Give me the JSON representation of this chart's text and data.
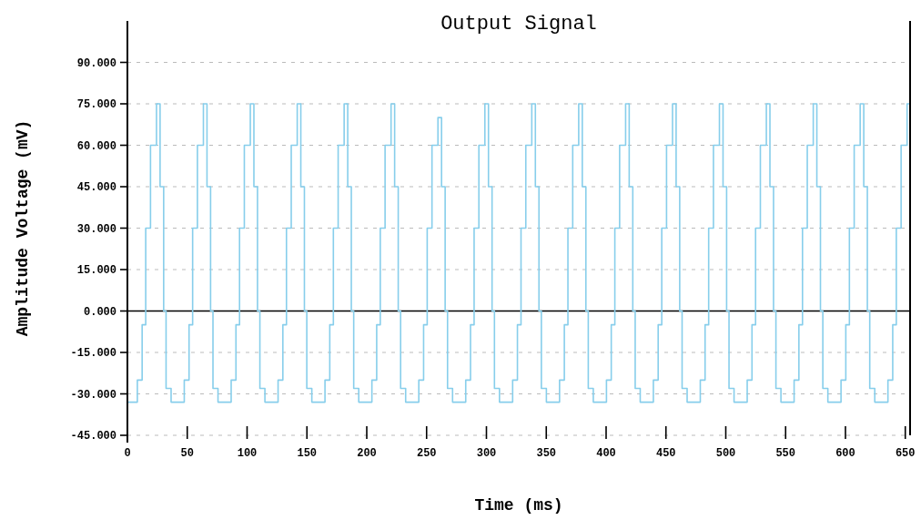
{
  "chart_data": {
    "type": "step",
    "title": "Output Signal",
    "xlabel": "Time (ms)",
    "ylabel": "Amplitude Voltage (mV)",
    "xlim": [
      0,
      654
    ],
    "ylim": [
      -45,
      105
    ],
    "xticks": [
      0,
      50,
      100,
      150,
      200,
      250,
      300,
      350,
      400,
      450,
      500,
      550,
      600,
      650
    ],
    "yticks": [
      {
        "value": -45,
        "label": "-45.000"
      },
      {
        "value": -30,
        "label": "-30.000"
      },
      {
        "value": -15,
        "label": "-15.000"
      },
      {
        "value": 0,
        "label": "0.000"
      },
      {
        "value": 15,
        "label": "15.000"
      },
      {
        "value": 30,
        "label": "30.000"
      },
      {
        "value": 45,
        "label": "45.000"
      },
      {
        "value": 60,
        "label": "60.000"
      },
      {
        "value": 75,
        "label": "75.000"
      },
      {
        "value": 90,
        "label": "90.000"
      }
    ],
    "grid": "y",
    "marker": "none",
    "line_style": "solid",
    "ref_lines": [
      {
        "axis": "y",
        "value": 0,
        "color": "#000000"
      }
    ],
    "series": [
      {
        "color": "#87ceeb",
        "x": [
          0,
          8.3,
          12.3,
          15.3,
          19.3,
          24.3,
          27.3,
          30.3,
          32.3,
          36.5,
          47.5,
          51.5,
          54.5,
          58.5,
          63.5,
          66.5,
          69.5,
          71.5,
          75.7,
          86.7,
          90.7,
          93.7,
          97.7,
          102.7,
          105.7,
          108.7,
          110.7,
          114.9,
          125.9,
          129.9,
          132.9,
          136.9,
          141.9,
          144.9,
          147.9,
          149.9,
          154.1,
          165.1,
          169.1,
          172.1,
          176.1,
          181.1,
          184.1,
          187.1,
          189.1,
          193.3,
          204.3,
          208.3,
          211.3,
          215.3,
          220.3,
          223.3,
          226.3,
          228.3,
          232.5,
          243.5,
          247.5,
          250.5,
          254.5,
          259.5,
          262.5,
          265.5,
          267.5,
          271.7,
          282.7,
          286.7,
          289.7,
          293.7,
          298.7,
          301.7,
          304.7,
          306.7,
          310.9,
          321.9,
          325.9,
          328.9,
          332.9,
          337.9,
          340.9,
          343.9,
          345.9,
          350.1,
          361.1,
          365.1,
          368.1,
          372.1,
          377.1,
          380.1,
          383.1,
          385.1,
          389.3,
          400.3,
          404.3,
          407.3,
          411.3,
          416.3,
          419.3,
          422.3,
          424.3,
          428.5,
          439.5,
          443.5,
          446.5,
          450.5,
          455.5,
          458.5,
          461.5,
          463.5,
          467.7,
          478.7,
          482.7,
          485.7,
          489.7,
          494.7,
          497.7,
          500.7,
          502.7,
          506.9,
          517.9,
          521.9,
          524.9,
          528.9,
          533.9,
          536.9,
          539.9,
          541.9,
          546.1,
          557.1,
          561.1,
          564.1,
          568.1,
          573.1,
          576.1,
          579.1,
          581.1,
          585.3,
          596.3,
          600.3,
          603.3,
          607.3,
          612.3,
          615.3,
          618.3,
          620.3,
          624.5,
          635.5,
          639.5,
          642.5,
          646.5,
          651.5,
          654
        ],
        "values": [
          -33,
          -25,
          -5,
          30,
          60,
          75,
          45,
          0,
          -28,
          -33,
          -25,
          -5,
          30,
          60,
          75,
          45,
          0,
          -28,
          -33,
          -25,
          -5,
          30,
          60,
          75,
          45,
          0,
          -28,
          -33,
          -25,
          -5,
          30,
          60,
          75,
          45,
          0,
          -28,
          -33,
          -25,
          -5,
          30,
          60,
          75,
          45,
          0,
          -28,
          -33,
          -25,
          -5,
          30,
          60,
          75,
          45,
          0,
          -28,
          -33,
          -25,
          -5,
          30,
          60,
          70,
          45,
          0,
          -28,
          -33,
          -25,
          -5,
          30,
          60,
          75,
          45,
          0,
          -28,
          -33,
          -25,
          -5,
          30,
          60,
          75,
          45,
          0,
          -28,
          -33,
          -25,
          -5,
          30,
          60,
          75,
          45,
          0,
          -28,
          -33,
          -25,
          -5,
          30,
          60,
          75,
          45,
          0,
          -28,
          -33,
          -25,
          -5,
          30,
          60,
          75,
          45,
          0,
          -28,
          -33,
          -25,
          -5,
          30,
          60,
          75,
          45,
          0,
          -28,
          -33,
          -25,
          -5,
          30,
          60,
          75,
          45,
          0,
          -28,
          -33,
          -25,
          -5,
          30,
          60,
          75,
          45,
          0,
          -28,
          -33,
          -25,
          -5,
          30,
          60,
          75,
          45,
          0,
          -28,
          -33,
          -25,
          -5,
          30,
          60,
          75,
          65
        ]
      }
    ]
  }
}
